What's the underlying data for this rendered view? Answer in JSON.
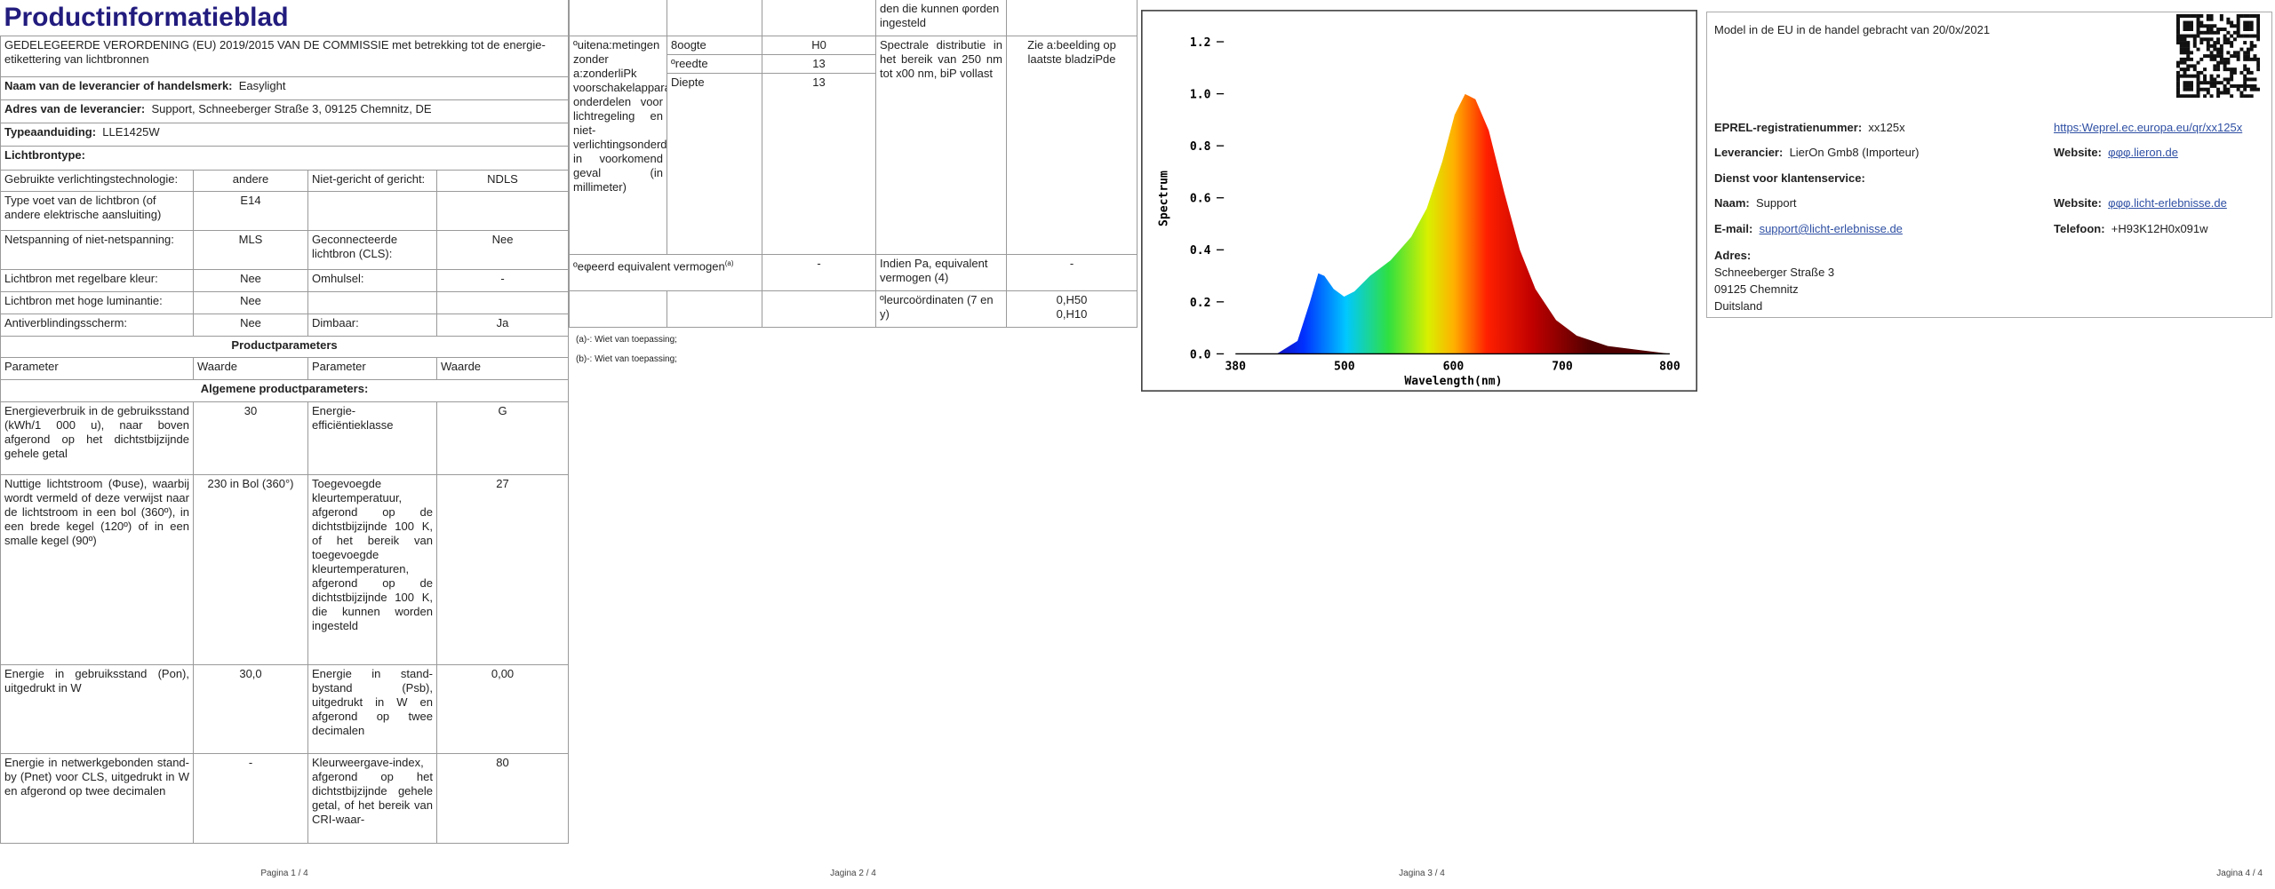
{
  "page1": {
    "title": "Productinformatieblad",
    "regulation": "GEDELEGEERDE VERORDENING (EU) 2019/2015 VAN DE COMMISSIE met betrekking tot de energie-etikettering van lichtbronnen",
    "supplier": {
      "label": "Naam van de leverancier of handelsmerk:",
      "value": "Easylight"
    },
    "address": {
      "label": "Adres van de leverancier:",
      "value": "Support, Schneeberger Straße 3, 09125 Chemnitz, DE"
    },
    "model": {
      "label": "Typeaanduiding:",
      "value": "LLE1425W"
    },
    "light_source_type": "Lichtbrontype:",
    "attributes": [
      [
        "Gebruikte verlichtingstechnologie:",
        "andere",
        "Niet-gericht of gericht:",
        "NDLS"
      ],
      [
        "Type voet van de lichtbron (of andere elektrische aansluiting)",
        "E14",
        null,
        null
      ],
      [
        "Netspanning of niet-netspanning:",
        "MLS",
        "Geconnecteerde lichtbron (CLS):",
        "Nee"
      ],
      [
        "Lichtbron met regelbare kleur:",
        "Nee",
        "Omhulsel:",
        "-"
      ],
      [
        "Lichtbron met hoge luminantie:",
        "Nee",
        null,
        null
      ],
      [
        "Antiverblindingsscherm:",
        "Nee",
        "Dimbaar:",
        "Ja"
      ]
    ],
    "product_parameters": "Productparameters",
    "headers": [
      "Parameter",
      "Waarde",
      "Parameter",
      "Waarde"
    ],
    "general": "Algemene productparameters:",
    "params": [
      [
        "Energieverbruik in de gebruiksstand (kWh/1 000 u), naar boven afgerond op het dichtstbijzijnde gehele getal",
        "30",
        "Energie-efficiëntieklasse",
        "G"
      ],
      [
        "Nuttige lichtstroom (Φuse), waarbij wordt vermeld of deze verwijst naar de lichtstroom in een bol (360º), in een brede kegel (120º) of in een smalle kegel (90º)",
        "230 in Bol (360°)",
        "Toegevoegde kleurtemperatuur, afgerond op de dichtstbijzijnde 100 K, of het bereik van toegevoegde kleurtemperaturen, afgerond op de dichtstbijzijnde 100 K, die kunnen worden ingesteld",
        "27"
      ],
      [
        "Energie in gebruiksstand (Pon), uitgedrukt in W",
        "30,0",
        "Energie in stand-bystand (Psb), uitgedrukt in W en afgerond op twee decimalen",
        "0,00"
      ],
      [
        "Energie in netwerkgebonden stand-by (Pnet) voor CLS, uitgedrukt in W en afgerond op twee decimalen",
        "-",
        "Kleurweergave-index, afgerond op het dichtstbijzijnde gehele getal, of het bereik van CRI-waar-",
        "80"
      ]
    ],
    "footer": "Pagina 1 / 4"
  },
  "page2": {
    "continued": "den die kunnen φorden ingesteld",
    "dimensions": "ºuitena:metingen zonder a:zonderliPk voorschakelapparaat, onderdelen voor lichtregeling en niet-verlichtingsonderdelen, in voorkomend geval (in millimeter)",
    "dimension_rows": [
      [
        "8oogte",
        "H0"
      ],
      [
        "ºreedte",
        "13"
      ],
      [
        "Diepte",
        "13"
      ]
    ],
    "spectral": "Spectrale distributie in het bereik van 250 nm tot x00 nm, biP vollast",
    "spectral_value": "Zie a:beelding op laatste bladziPde",
    "equivalent": "ºeφeerd equivalent vermogen",
    "equivalent_note": "(a)",
    "equivalent_value": "-",
    "equivalent_power": "Indien Pa, equivalent vermogen (4)",
    "equivalent_power_value": "-",
    "chromaticity": "ºleurcoördinaten (7 en y)",
    "chromaticity_values": [
      "0,H50",
      "0,H10"
    ],
    "notes": [
      "(a)-: Wiet van toepassing;",
      "(b)-: Wiet van toepassing;"
    ],
    "footer": "Jagina 2 / 4"
  },
  "page3": {
    "spectrum": {
      "y_label": "Spectrum",
      "x_label": "Wavelength(nm)",
      "yticks": [
        "1.2",
        "1.0",
        "0.8",
        "0.6",
        "0.4",
        "0.2",
        "0.0"
      ],
      "xticks": [
        "380",
        "500",
        "600",
        "700",
        "800"
      ]
    },
    "footer": "Jagina 3 / 4"
  },
  "page4": {
    "placed": "Model in de EU in de handel gebracht van 20/0x/2021",
    "eprel": {
      "label": "EPREL-registratienummer:",
      "value": "xx125x",
      "link": "https:Weprel.ec.europa.eu/qr/xx125x"
    },
    "supplier": {
      "label": "Leverancier:",
      "value": "LierOn Gmb8 (Importeur)"
    },
    "supplier_website": {
      "label": "Website:",
      "value": "φφφ.lieron.de"
    },
    "service": "Dienst voor klantenservice:",
    "name": {
      "label": "Naam:",
      "value": "Support"
    },
    "service_website": {
      "label": "Website:",
      "value": "φφφ.licht-erlebnisse.de"
    },
    "email": {
      "label": "E-mail:",
      "value": "support@licht-erlebnisse.de"
    },
    "phone": {
      "label": "Telefoon:",
      "value": "+H93K12H0x091w"
    },
    "address": {
      "label": "Adres:",
      "lines": [
        "Schneeberger Straße 3",
        "09125 Chemnitz",
        "Duitsland"
      ]
    },
    "footer": "Jagina 4 / 4"
  }
}
